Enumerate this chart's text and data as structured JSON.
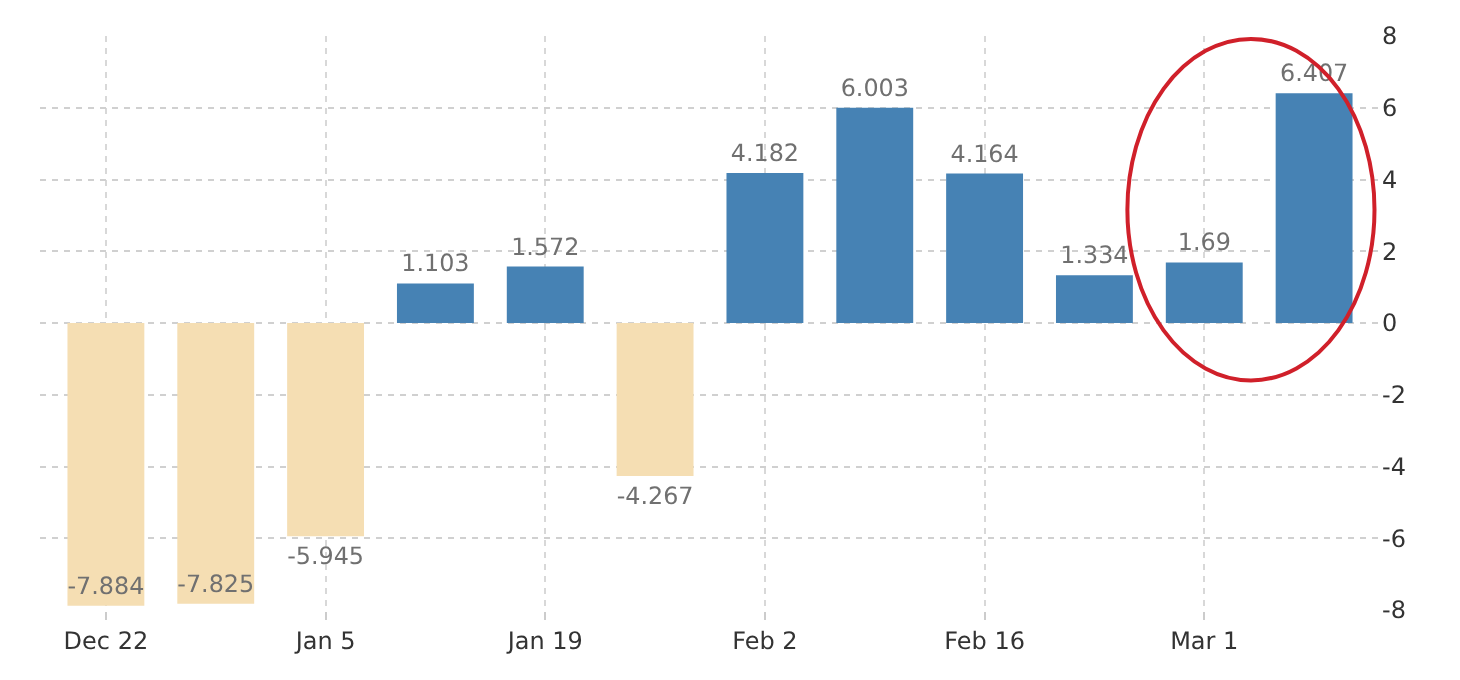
{
  "chart_data": {
    "type": "bar",
    "categories": [
      "Dec 22",
      null,
      "Jan 5",
      null,
      "Jan 19",
      null,
      "Feb 2",
      null,
      "Feb 16",
      null,
      "Mar 1",
      null
    ],
    "values": [
      -7.884,
      -7.825,
      -5.945,
      1.103,
      1.572,
      -4.267,
      4.182,
      6.003,
      4.164,
      1.334,
      1.69,
      6.407
    ],
    "colors": [
      "#f5deb3",
      "#f5deb3",
      "#f5deb3",
      "#4682b4",
      "#4682b4",
      "#f5deb3",
      "#4682b4",
      "#4682b4",
      "#4682b4",
      "#4682b4",
      "#4682b4",
      "#4682b4"
    ],
    "data_labels": true,
    "ylim": [
      -8,
      8
    ],
    "yticks": [
      -8,
      -6,
      -4,
      -2,
      0,
      2,
      4,
      6,
      8
    ],
    "grid": true
  }
}
